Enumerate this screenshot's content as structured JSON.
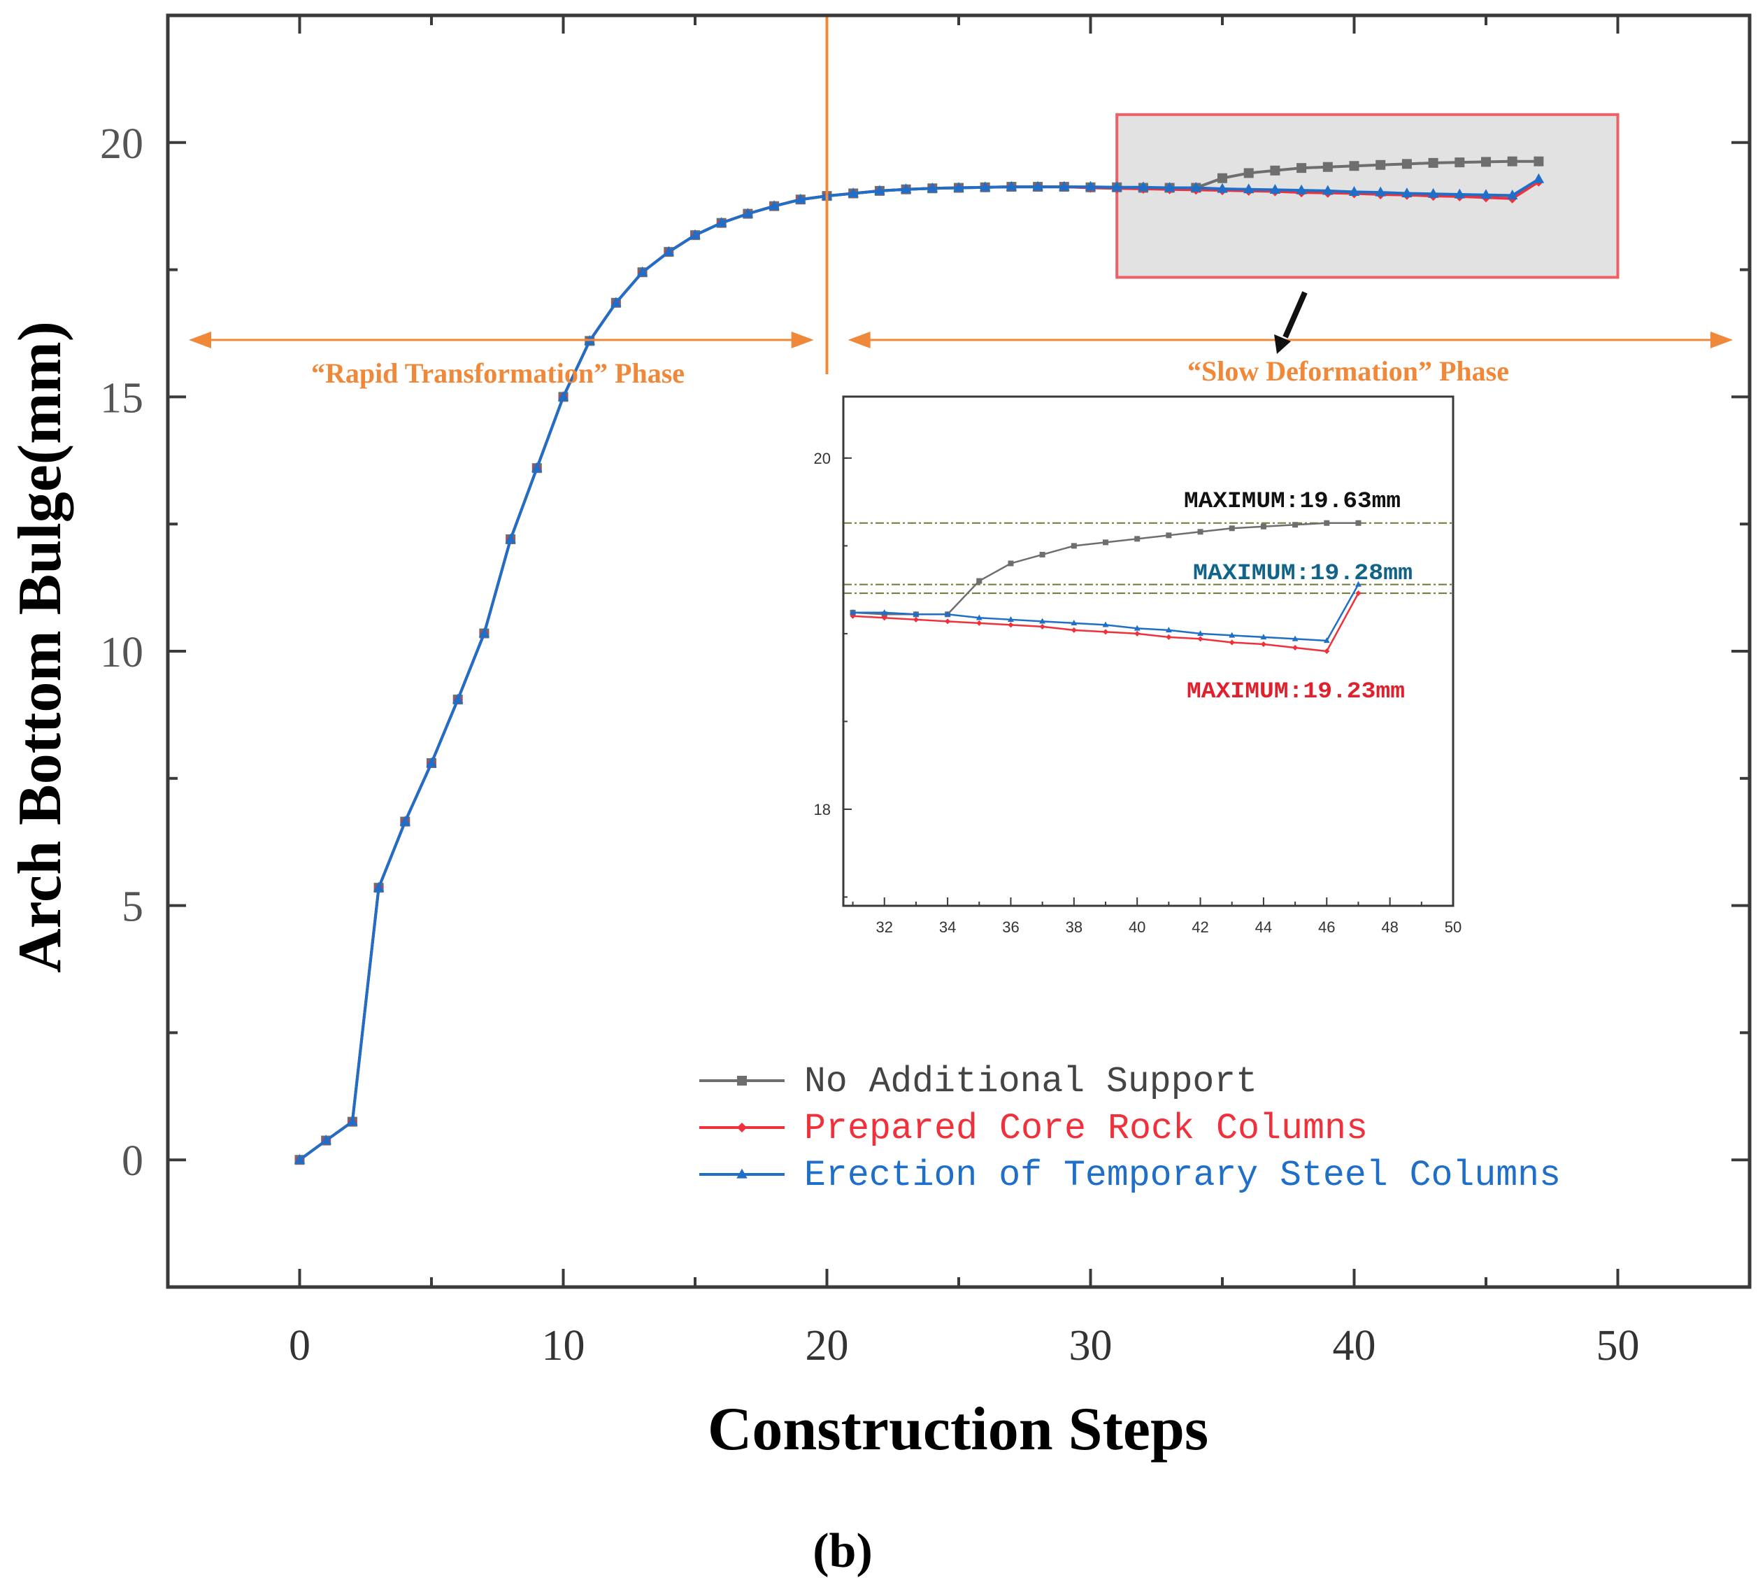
{
  "figure_label": "(b)",
  "colors": {
    "axis": "#3a3a3a",
    "no_support": "#6e6e6e",
    "core_rock": "#f0303a",
    "steel": "#1f6fc8",
    "phase": "#f0883a",
    "zoom_box_fill": "#e2e2e2",
    "zoom_box_stroke": "#ee5f66",
    "guide_line": "#6b7a33",
    "max_black": "#111111",
    "max_blue": "#12638a",
    "max_red": "#e0202c"
  },
  "chart_data": {
    "type": "line",
    "xlabel": "Construction Steps",
    "ylabel": "Arch Bottom Bulge(mm)",
    "xlim": [
      -5,
      55
    ],
    "ylim": [
      -2.5,
      22.5
    ],
    "x_ticks": [
      0,
      10,
      20,
      30,
      40,
      50
    ],
    "y_ticks": [
      0,
      5,
      10,
      15,
      20
    ],
    "legend_position": "lower-right",
    "series": [
      {
        "name": "No Additional Support",
        "key": "no_support",
        "marker": "square",
        "x": [
          0,
          1,
          2,
          3,
          4,
          5,
          6,
          7,
          8,
          9,
          10,
          11,
          12,
          13,
          14,
          15,
          16,
          17,
          18,
          19,
          20,
          21,
          22,
          23,
          24,
          25,
          26,
          27,
          28,
          29,
          30,
          31,
          32,
          33,
          34,
          35,
          36,
          37,
          38,
          39,
          40,
          41,
          42,
          43,
          44,
          45,
          46,
          47
        ],
        "y": [
          0.0,
          0.38,
          0.75,
          5.35,
          6.65,
          7.8,
          9.05,
          10.35,
          12.2,
          13.6,
          15.0,
          16.1,
          16.85,
          17.45,
          17.85,
          18.18,
          18.42,
          18.6,
          18.75,
          18.88,
          18.95,
          19.0,
          19.05,
          19.08,
          19.1,
          19.11,
          19.12,
          19.13,
          19.13,
          19.13,
          19.12,
          19.12,
          19.11,
          19.11,
          19.11,
          19.3,
          19.4,
          19.45,
          19.5,
          19.52,
          19.54,
          19.56,
          19.58,
          19.6,
          19.61,
          19.62,
          19.63,
          19.63
        ]
      },
      {
        "name": "Prepared Core Rock Columns",
        "key": "core_rock",
        "marker": "diamond",
        "x": [
          0,
          1,
          2,
          3,
          4,
          5,
          6,
          7,
          8,
          9,
          10,
          11,
          12,
          13,
          14,
          15,
          16,
          17,
          18,
          19,
          20,
          21,
          22,
          23,
          24,
          25,
          26,
          27,
          28,
          29,
          30,
          31,
          32,
          33,
          34,
          35,
          36,
          37,
          38,
          39,
          40,
          41,
          42,
          43,
          44,
          45,
          46,
          47
        ],
        "y": [
          0.0,
          0.38,
          0.75,
          5.35,
          6.65,
          7.8,
          9.05,
          10.35,
          12.2,
          13.6,
          15.0,
          16.1,
          16.85,
          17.45,
          17.85,
          18.18,
          18.42,
          18.6,
          18.75,
          18.88,
          18.95,
          19.0,
          19.05,
          19.08,
          19.1,
          19.11,
          19.12,
          19.13,
          19.13,
          19.13,
          19.11,
          19.1,
          19.09,
          19.08,
          19.07,
          19.06,
          19.05,
          19.04,
          19.02,
          19.01,
          19.0,
          18.98,
          18.97,
          18.95,
          18.94,
          18.92,
          18.9,
          19.23
        ]
      },
      {
        "name": "Erection of Temporary Steel Columns",
        "key": "steel",
        "marker": "triangle",
        "x": [
          0,
          1,
          2,
          3,
          4,
          5,
          6,
          7,
          8,
          9,
          10,
          11,
          12,
          13,
          14,
          15,
          16,
          17,
          18,
          19,
          20,
          21,
          22,
          23,
          24,
          25,
          26,
          27,
          28,
          29,
          30,
          31,
          32,
          33,
          34,
          35,
          36,
          37,
          38,
          39,
          40,
          41,
          42,
          43,
          44,
          45,
          46,
          47
        ],
        "y": [
          0.0,
          0.38,
          0.75,
          5.35,
          6.65,
          7.8,
          9.05,
          10.35,
          12.2,
          13.6,
          15.0,
          16.1,
          16.85,
          17.45,
          17.85,
          18.18,
          18.42,
          18.6,
          18.75,
          18.88,
          18.95,
          19.0,
          19.05,
          19.08,
          19.1,
          19.11,
          19.12,
          19.13,
          19.13,
          19.13,
          19.13,
          19.12,
          19.12,
          19.11,
          19.11,
          19.09,
          19.08,
          19.07,
          19.06,
          19.05,
          19.03,
          19.02,
          19.0,
          18.99,
          18.98,
          18.97,
          18.96,
          19.28
        ]
      }
    ],
    "phases": {
      "divider_x": 20,
      "rapid": {
        "label": "“Rapid Transformation” Phase",
        "x_range": [
          -5,
          19.5
        ]
      },
      "slow": {
        "label": "“Slow Deformation” Phase",
        "x_range": [
          20.8,
          55
        ]
      }
    },
    "zoom_region": {
      "x": [
        31,
        50
      ],
      "y": [
        17.35,
        20.55
      ]
    },
    "inset": {
      "xlim": [
        30.7,
        50
      ],
      "ylim": [
        17.45,
        20.35
      ],
      "x_ticks": [
        32,
        34,
        36,
        38,
        40,
        42,
        44,
        46,
        48,
        50
      ],
      "y_ticks": [
        18,
        20
      ],
      "guide_lines_y": [
        19.63,
        19.28,
        19.23
      ],
      "annotations": [
        {
          "text": "MAXIMUM:19.63mm",
          "key": "max_black"
        },
        {
          "text": "MAXIMUM:19.28mm",
          "key": "max_blue"
        },
        {
          "text": "MAXIMUM:19.23mm",
          "key": "max_red"
        }
      ]
    }
  }
}
